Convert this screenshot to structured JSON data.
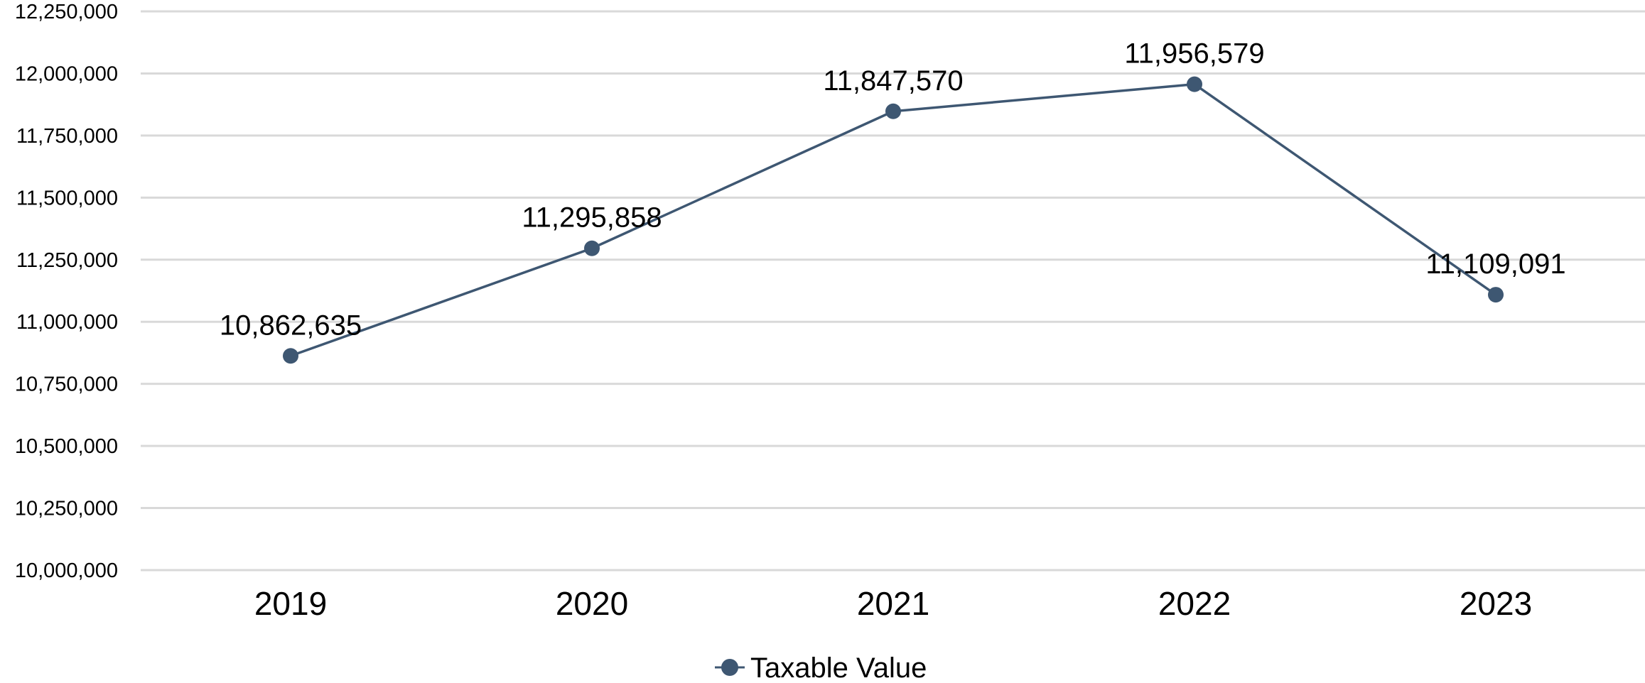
{
  "chart_data": {
    "type": "line",
    "categories": [
      "2019",
      "2020",
      "2021",
      "2022",
      "2023"
    ],
    "series": [
      {
        "name": "Taxable Value",
        "values": [
          10862635,
          11295858,
          11847570,
          11956579,
          11109091
        ],
        "labels": [
          "10,862,635",
          "11,295,858",
          "11,847,570",
          "11,956,579",
          "11,109,091"
        ],
        "color": "#3e5772"
      }
    ],
    "ylim": [
      10000000,
      12250000
    ],
    "yticks": [
      10000000,
      10250000,
      10500000,
      10750000,
      11000000,
      11250000,
      11500000,
      11750000,
      12000000,
      12250000
    ],
    "ytick_labels": [
      "10,000,000",
      "10,250,000",
      "10,500,000",
      "10,750,000",
      "11,000,000",
      "11,250,000",
      "11,500,000",
      "11,750,000",
      "12,000,000",
      "12,250,000"
    ],
    "grid": true,
    "legend": "bottom-center",
    "gridline_color": "#d9d9d9"
  }
}
